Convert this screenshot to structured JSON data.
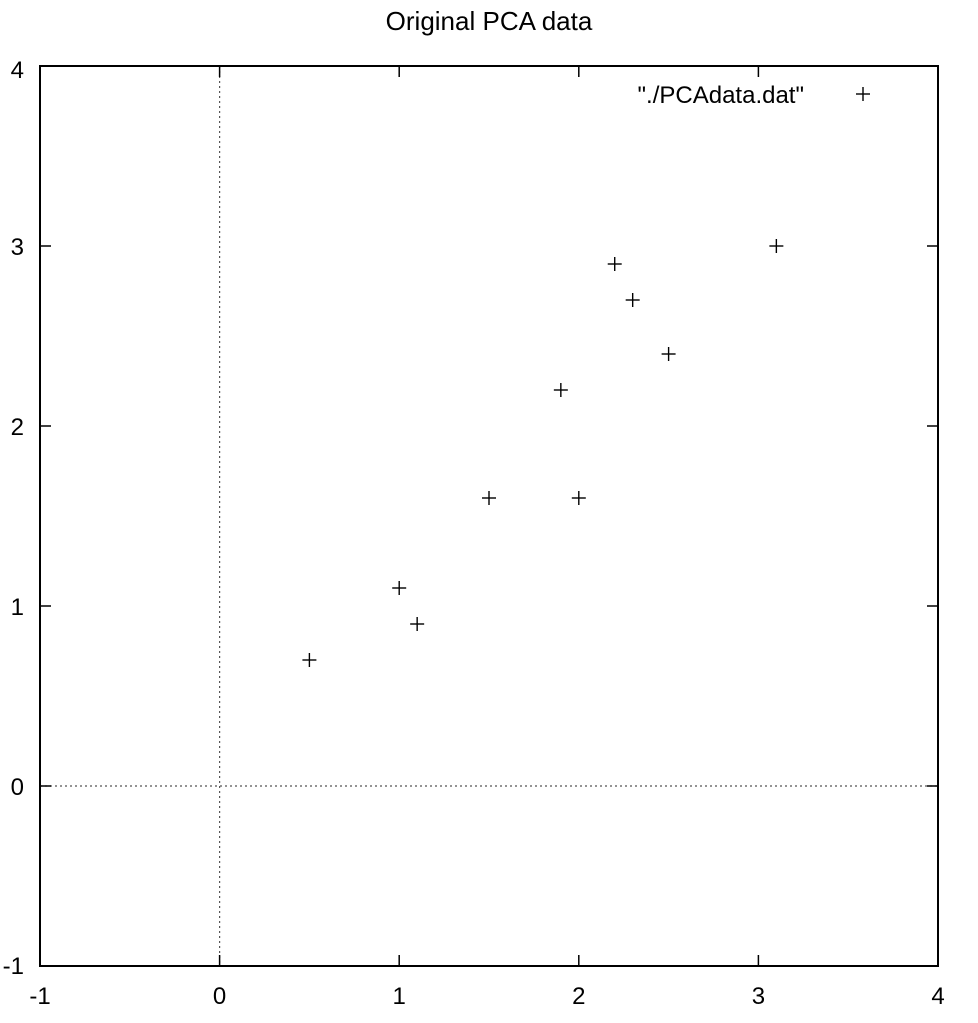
{
  "chart_data": {
    "type": "scatter",
    "title": "Original PCA data",
    "xlabel": "",
    "ylabel": "",
    "xlim": [
      -1,
      4
    ],
    "ylim": [
      -1,
      4
    ],
    "xticks": [
      -1,
      0,
      1,
      2,
      3,
      4
    ],
    "yticks": [
      -1,
      0,
      1,
      2,
      3,
      4
    ],
    "xtick_labels": [
      "-1",
      "0",
      "1",
      "2",
      "3",
      "4"
    ],
    "ytick_labels": [
      "-1",
      "0",
      "1",
      "2",
      "3",
      "4"
    ],
    "grid": false,
    "zero_axes": true,
    "legend_position": "top-right",
    "marker": "plus",
    "series": [
      {
        "name": "\"./PCAdata.dat\"",
        "color": "#000000",
        "points": [
          {
            "x": 0.5,
            "y": 0.7
          },
          {
            "x": 1.0,
            "y": 1.1
          },
          {
            "x": 1.1,
            "y": 0.9
          },
          {
            "x": 1.5,
            "y": 1.6
          },
          {
            "x": 1.9,
            "y": 2.2
          },
          {
            "x": 2.0,
            "y": 1.6
          },
          {
            "x": 2.2,
            "y": 2.9
          },
          {
            "x": 2.3,
            "y": 2.7
          },
          {
            "x": 2.5,
            "y": 2.4
          },
          {
            "x": 3.1,
            "y": 3.0
          }
        ]
      }
    ]
  }
}
